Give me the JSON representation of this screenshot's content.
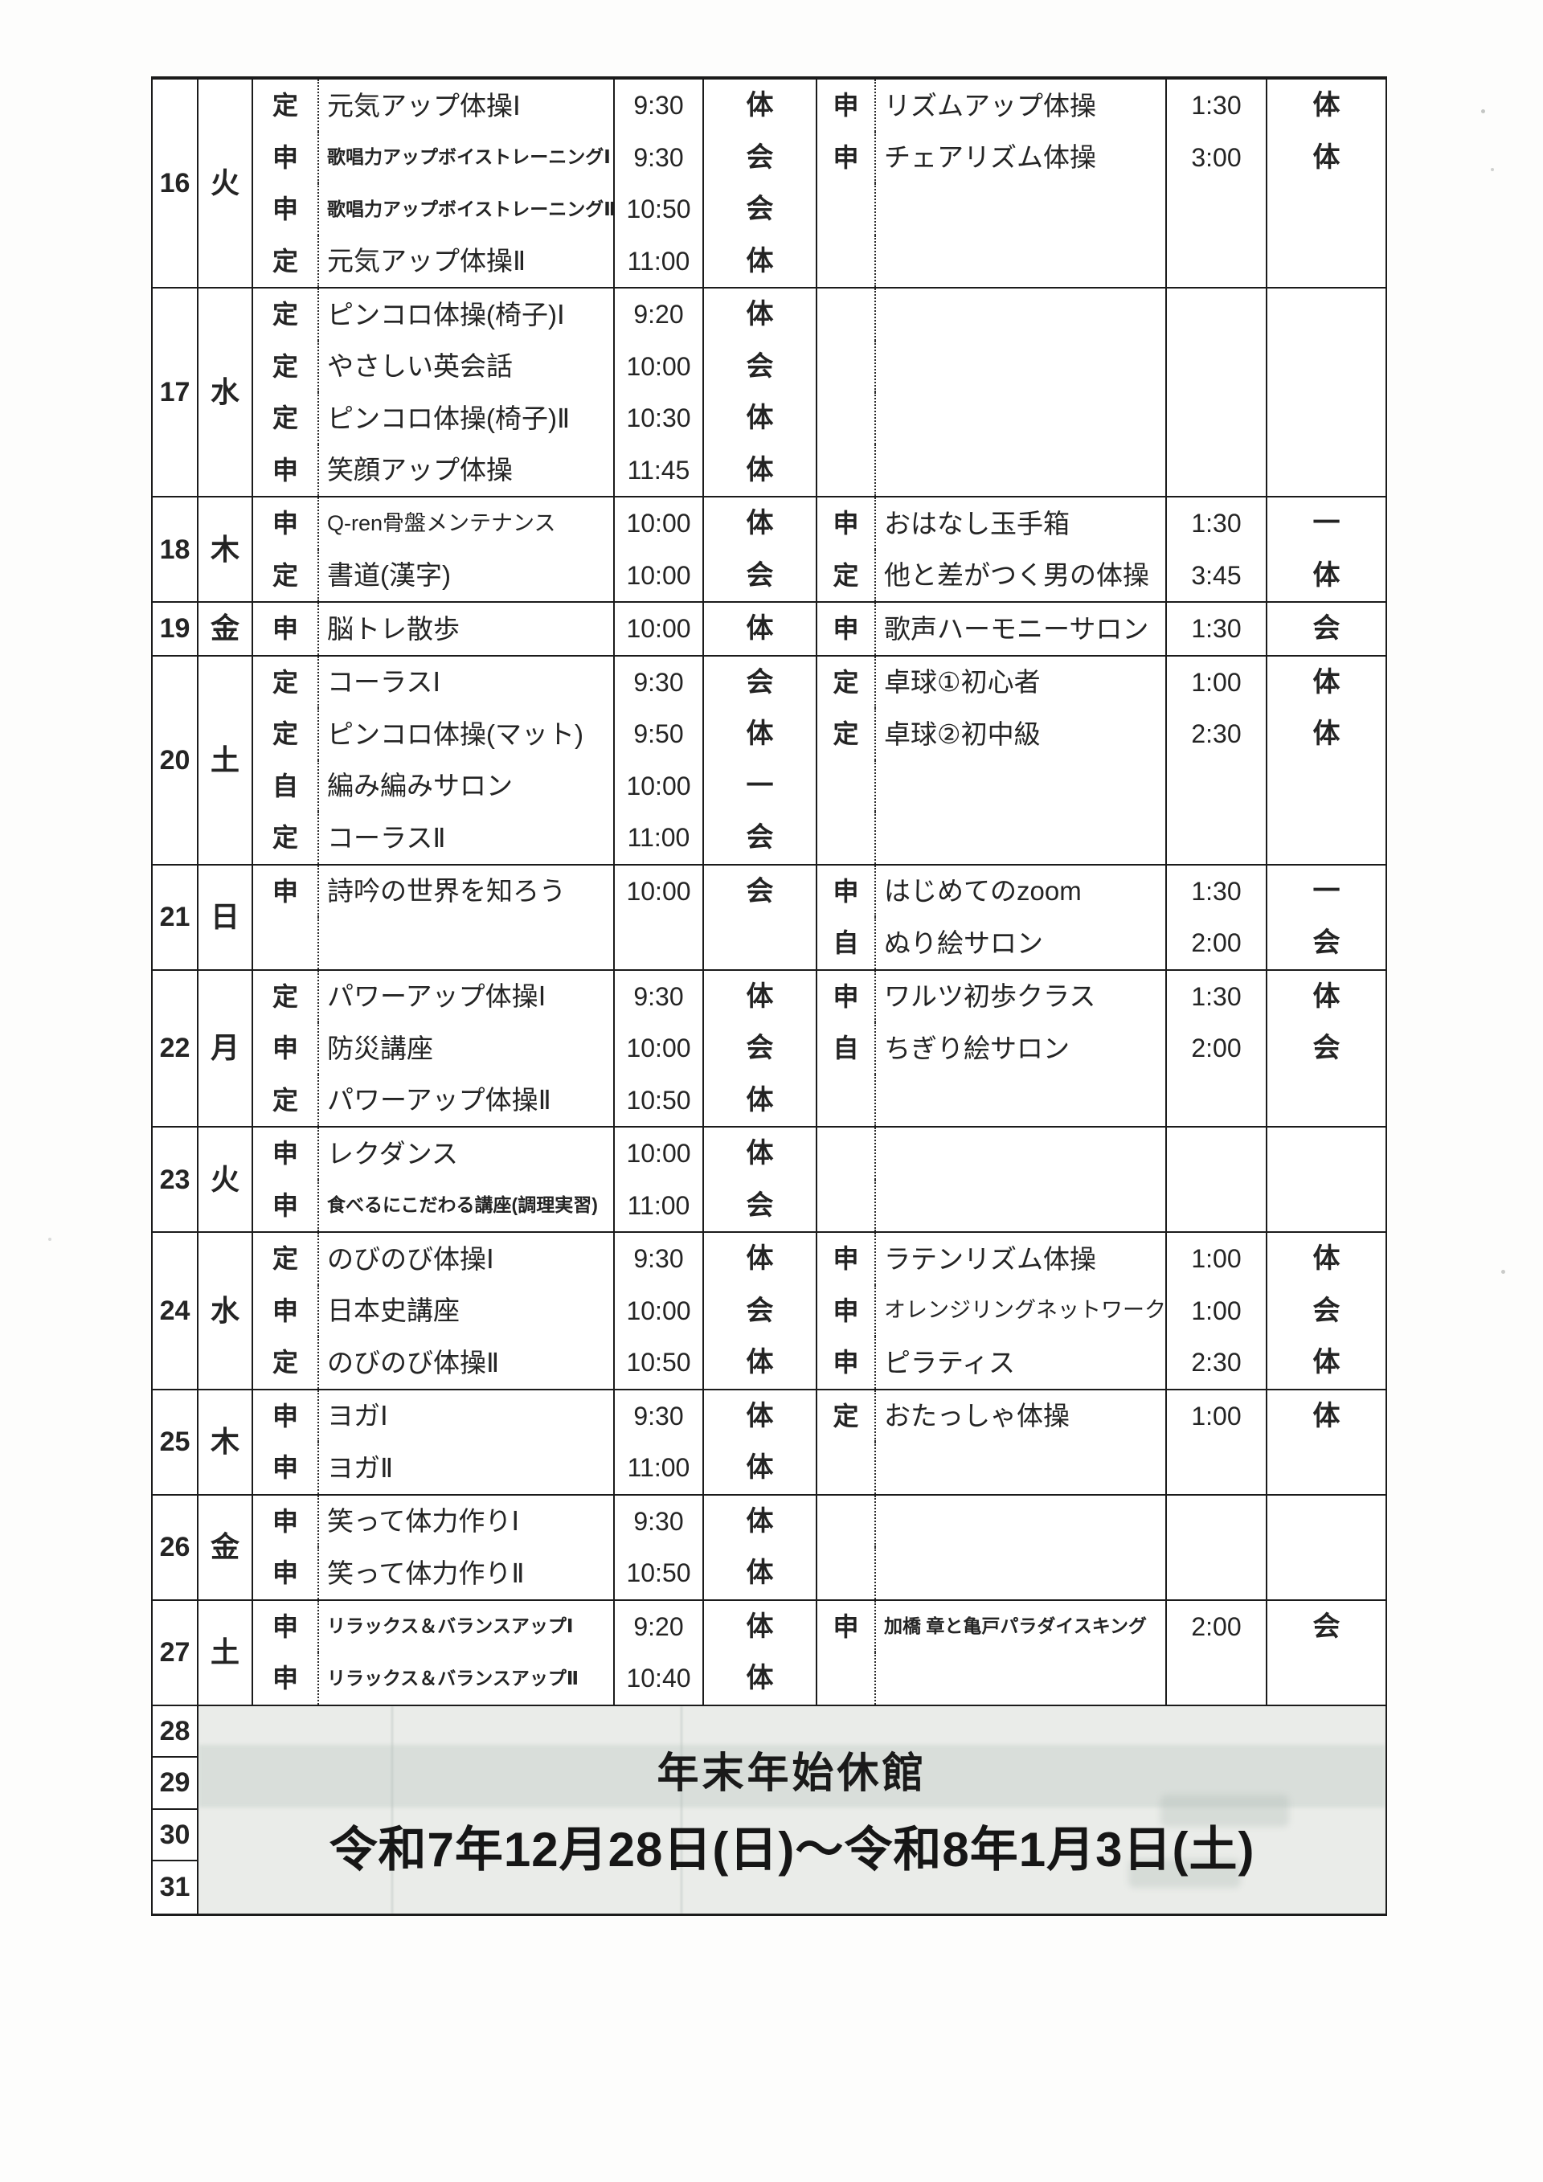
{
  "table": {
    "rows": [
      {
        "day": "16",
        "weekday": "火",
        "lines": [
          {
            "am": {
              "type": "定",
              "name": "元気アップ体操Ⅰ",
              "time": "9:30",
              "venue": "体"
            },
            "pm": {
              "type": "申",
              "name": "リズムアップ体操",
              "time": "1:30",
              "venue": "体"
            }
          },
          {
            "am": {
              "type": "申",
              "name": "歌唱力アップボイストレーニングⅠ",
              "time": "9:30",
              "venue": "会"
            },
            "pm": {
              "type": "申",
              "name": "チェアリズム体操",
              "time": "3:00",
              "venue": "体"
            }
          },
          {
            "am": {
              "type": "申",
              "name": "歌唱力アップボイストレーニングⅡ",
              "time": "10:50",
              "venue": "会"
            }
          },
          {
            "am": {
              "type": "定",
              "name": "元気アップ体操Ⅱ",
              "time": "11:00",
              "venue": "体"
            }
          }
        ]
      },
      {
        "day": "17",
        "weekday": "水",
        "lines": [
          {
            "am": {
              "type": "定",
              "name": "ピンコロ体操(椅子)Ⅰ",
              "time": "9:20",
              "venue": "体"
            }
          },
          {
            "am": {
              "type": "定",
              "name": "やさしい英会話",
              "time": "10:00",
              "venue": "会"
            }
          },
          {
            "am": {
              "type": "定",
              "name": "ピンコロ体操(椅子)Ⅱ",
              "time": "10:30",
              "venue": "体"
            }
          },
          {
            "am": {
              "type": "申",
              "name": "笑顔アップ体操",
              "time": "11:45",
              "venue": "体"
            }
          }
        ]
      },
      {
        "day": "18",
        "weekday": "木",
        "lines": [
          {
            "am": {
              "type": "申",
              "name": "Q-ren骨盤メンテナンス",
              "time": "10:00",
              "venue": "体"
            },
            "pm": {
              "type": "申",
              "name": "おはなし玉手箱",
              "time": "1:30",
              "venue": "一"
            }
          },
          {
            "am": {
              "type": "定",
              "name": "書道(漢字)",
              "time": "10:00",
              "venue": "会"
            },
            "pm": {
              "type": "定",
              "name": "他と差がつく男の体操",
              "time": "3:45",
              "venue": "体"
            }
          }
        ]
      },
      {
        "day": "19",
        "weekday": "金",
        "lines": [
          {
            "am": {
              "type": "申",
              "name": "脳トレ散歩",
              "time": "10:00",
              "venue": "体"
            },
            "pm": {
              "type": "申",
              "name": "歌声ハーモニーサロン",
              "time": "1:30",
              "venue": "会"
            }
          }
        ]
      },
      {
        "day": "20",
        "weekday": "土",
        "lines": [
          {
            "am": {
              "type": "定",
              "name": "コーラスⅠ",
              "time": "9:30",
              "venue": "会"
            },
            "pm": {
              "type": "定",
              "name": "卓球①初心者",
              "time": "1:00",
              "venue": "体"
            }
          },
          {
            "am": {
              "type": "定",
              "name": "ピンコロ体操(マット)",
              "time": "9:50",
              "venue": "体"
            },
            "pm": {
              "type": "定",
              "name": "卓球②初中級",
              "time": "2:30",
              "venue": "体"
            }
          },
          {
            "am": {
              "type": "自",
              "name": "編み編みサロン",
              "time": "10:00",
              "venue": "一"
            }
          },
          {
            "am": {
              "type": "定",
              "name": "コーラスⅡ",
              "time": "11:00",
              "venue": "会"
            }
          }
        ]
      },
      {
        "day": "21",
        "weekday": "日",
        "lines": [
          {
            "am": {
              "type": "申",
              "name": "詩吟の世界を知ろう",
              "time": "10:00",
              "venue": "会"
            },
            "pm": {
              "type": "申",
              "name": "はじめてのzoom",
              "time": "1:30",
              "venue": "一"
            }
          },
          {
            "pm": {
              "type": "自",
              "name": "ぬり絵サロン",
              "time": "2:00",
              "venue": "会"
            }
          }
        ]
      },
      {
        "day": "22",
        "weekday": "月",
        "lines": [
          {
            "am": {
              "type": "定",
              "name": "パワーアップ体操Ⅰ",
              "time": "9:30",
              "venue": "体"
            },
            "pm": {
              "type": "申",
              "name": "ワルツ初歩クラス",
              "time": "1:30",
              "venue": "体"
            }
          },
          {
            "am": {
              "type": "申",
              "name": "防災講座",
              "time": "10:00",
              "venue": "会"
            },
            "pm": {
              "type": "自",
              "name": "ちぎり絵サロン",
              "time": "2:00",
              "venue": "会"
            }
          },
          {
            "am": {
              "type": "定",
              "name": "パワーアップ体操Ⅱ",
              "time": "10:50",
              "venue": "体"
            }
          }
        ]
      },
      {
        "day": "23",
        "weekday": "火",
        "lines": [
          {
            "am": {
              "type": "申",
              "name": "レクダンス",
              "time": "10:00",
              "venue": "体"
            }
          },
          {
            "am": {
              "type": "申",
              "name": "食べるにこだわる講座(調理実習)",
              "time": "11:00",
              "venue": "会"
            }
          }
        ]
      },
      {
        "day": "24",
        "weekday": "水",
        "lines": [
          {
            "am": {
              "type": "定",
              "name": "のびのび体操Ⅰ",
              "time": "9:30",
              "venue": "体"
            },
            "pm": {
              "type": "申",
              "name": "ラテンリズム体操",
              "time": "1:00",
              "venue": "体"
            }
          },
          {
            "am": {
              "type": "申",
              "name": "日本史講座",
              "time": "10:00",
              "venue": "会"
            },
            "pm": {
              "type": "申",
              "name": "オレンジリングネットワーク",
              "time": "1:00",
              "venue": "会"
            }
          },
          {
            "am": {
              "type": "定",
              "name": "のびのび体操Ⅱ",
              "time": "10:50",
              "venue": "体"
            },
            "pm": {
              "type": "申",
              "name": "ピラティス",
              "time": "2:30",
              "venue": "体"
            }
          }
        ]
      },
      {
        "day": "25",
        "weekday": "木",
        "lines": [
          {
            "am": {
              "type": "申",
              "name": "ヨガⅠ",
              "time": "9:30",
              "venue": "体"
            },
            "pm": {
              "type": "定",
              "name": "おたっしゃ体操",
              "time": "1:00",
              "venue": "体"
            }
          },
          {
            "am": {
              "type": "申",
              "name": "ヨガⅡ",
              "time": "11:00",
              "venue": "体"
            }
          }
        ]
      },
      {
        "day": "26",
        "weekday": "金",
        "lines": [
          {
            "am": {
              "type": "申",
              "name": "笑って体力作りⅠ",
              "time": "9:30",
              "venue": "体"
            }
          },
          {
            "am": {
              "type": "申",
              "name": "笑って体力作りⅡ",
              "time": "10:50",
              "venue": "体"
            }
          }
        ]
      },
      {
        "day": "27",
        "weekday": "土",
        "lines": [
          {
            "am": {
              "type": "申",
              "name": "リラックス＆バランスアップⅠ",
              "time": "9:20",
              "venue": "体"
            },
            "pm": {
              "type": "申",
              "name": "加橋 章と亀戸パラダイスキング",
              "time": "2:00",
              "venue": "会"
            }
          },
          {
            "am": {
              "type": "申",
              "name": "リラックス＆バランスアップⅡ",
              "time": "10:40",
              "venue": "体"
            }
          }
        ]
      }
    ],
    "closure": {
      "days": [
        "28",
        "29",
        "30",
        "31"
      ],
      "notice_line1": "年末年始休館",
      "notice_line2": "令和7年12月28日(日)～令和8年1月3日(土)"
    }
  }
}
